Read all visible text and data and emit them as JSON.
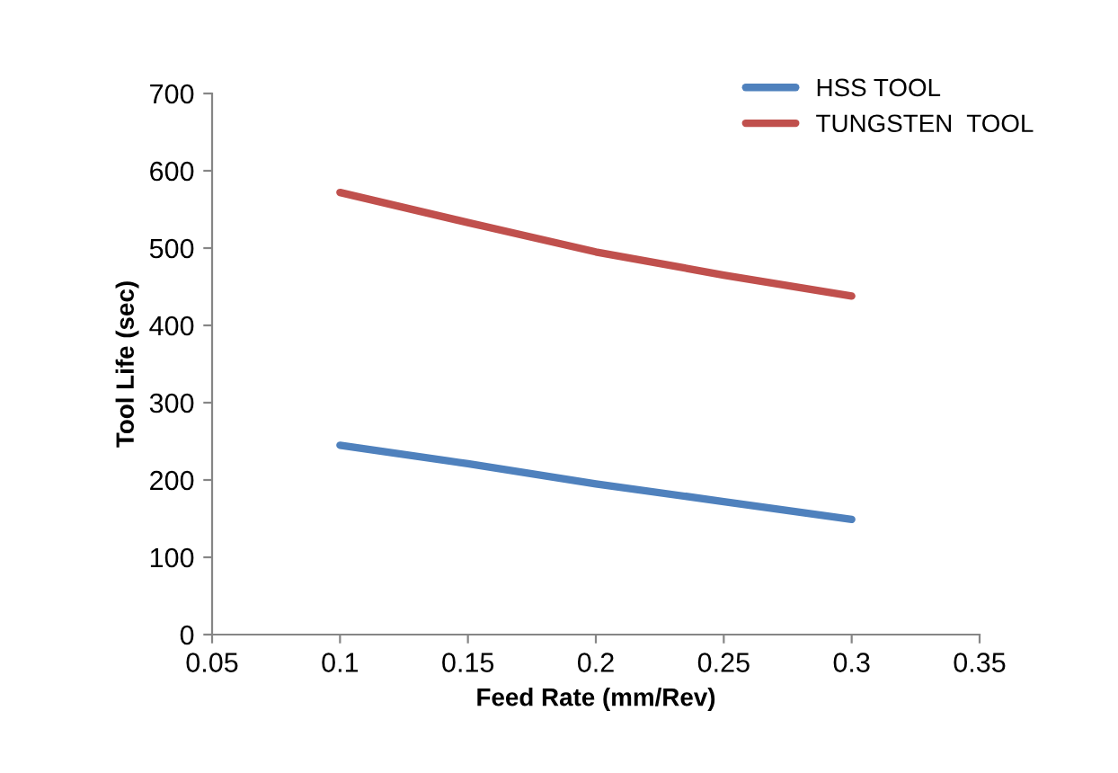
{
  "chart_data": {
    "type": "line",
    "xlabel": "Feed Rate (mm/Rev)",
    "ylabel": "Tool Life (sec)",
    "x": [
      0.1,
      0.15,
      0.2,
      0.25,
      0.3
    ],
    "series": [
      {
        "name": "HSS TOOL",
        "color": "#4f81bd",
        "values": [
          245,
          221,
          195,
          172,
          149
        ]
      },
      {
        "name": "TUNGSTEN  TOOL",
        "color": "#c0504d",
        "values": [
          572,
          533,
          495,
          465,
          438
        ]
      }
    ],
    "xlim": [
      0.05,
      0.35
    ],
    "xticks": [
      0.05,
      0.1,
      0.15,
      0.2,
      0.25,
      0.3,
      0.35
    ],
    "ylim": [
      0,
      700
    ],
    "yticks": [
      0,
      100,
      200,
      300,
      400,
      500,
      600,
      700
    ],
    "grid": false,
    "legend": "top right",
    "marker": "none",
    "line_style": "solid"
  }
}
